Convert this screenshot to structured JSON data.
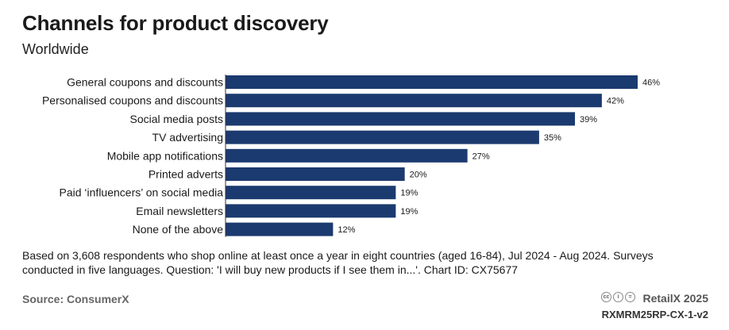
{
  "title": "Channels for product discovery",
  "subtitle": "Worldwide",
  "note": "Based on 3,608 respondents who shop online at least once a year in eight countries (aged 16-84), Jul 2024 - Aug 2024. Surveys conducted in five languages. Question: 'I will buy new products if I see them in...'. Chart ID: CX75677",
  "source": "Source: ConsumerX",
  "brand": "RetailX 2025",
  "code": "RXMRM25RP-CX-1-v2",
  "license_icons": [
    "cc-icon",
    "by-icon",
    "equals-icon"
  ],
  "colors": {
    "bar": "#1b3a6f",
    "axis": "#333333"
  },
  "chart_data": {
    "type": "bar",
    "orientation": "horizontal",
    "categories": [
      "General coupons and discounts",
      "Personalised coupons and discounts",
      "Social media posts",
      "TV advertising",
      "Mobile app notifications",
      "Printed adverts",
      "Paid ‘influencers’ on social media",
      "Email newsletters",
      "None of the above"
    ],
    "values": [
      46,
      42,
      39,
      35,
      27,
      20,
      19,
      19,
      12
    ],
    "labels": [
      "46%",
      "42%",
      "39%",
      "35%",
      "27%",
      "20%",
      "19%",
      "19%",
      "12%"
    ],
    "unit": "%",
    "xlim": [
      0,
      46
    ],
    "grid": false,
    "legend": "none"
  }
}
